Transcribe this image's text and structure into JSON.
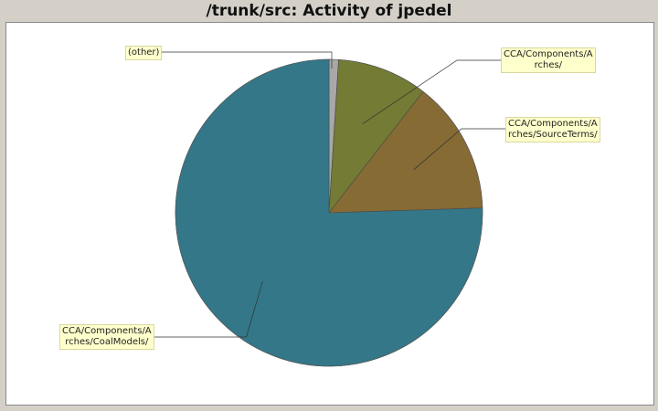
{
  "chart_data": {
    "type": "pie",
    "title": "/trunk/src: Activity of jpedel",
    "slices": [
      {
        "label": "(other)",
        "label_lines": [
          "(other)"
        ],
        "value": 1.0,
        "color": "#a8a8a8"
      },
      {
        "label": "CCA/Components/Arches/",
        "label_lines": [
          "CCA/Components/A",
          "rches/"
        ],
        "value": 9.5,
        "color": "#737b34"
      },
      {
        "label": "CCA/Components/Arches/SourceTerms/",
        "label_lines": [
          "CCA/Components/A",
          "rches/SourceTerms/"
        ],
        "value": 14.0,
        "color": "#866b35"
      },
      {
        "label": "CCA/Components/Arches/CoalModels/",
        "label_lines": [
          "CCA/Components/A",
          "rches/CoalModels/"
        ],
        "value": 75.5,
        "color": "#347789"
      }
    ],
    "start_angle": "top",
    "direction": "clockwise",
    "legend": "none",
    "label_style": "callouts"
  }
}
